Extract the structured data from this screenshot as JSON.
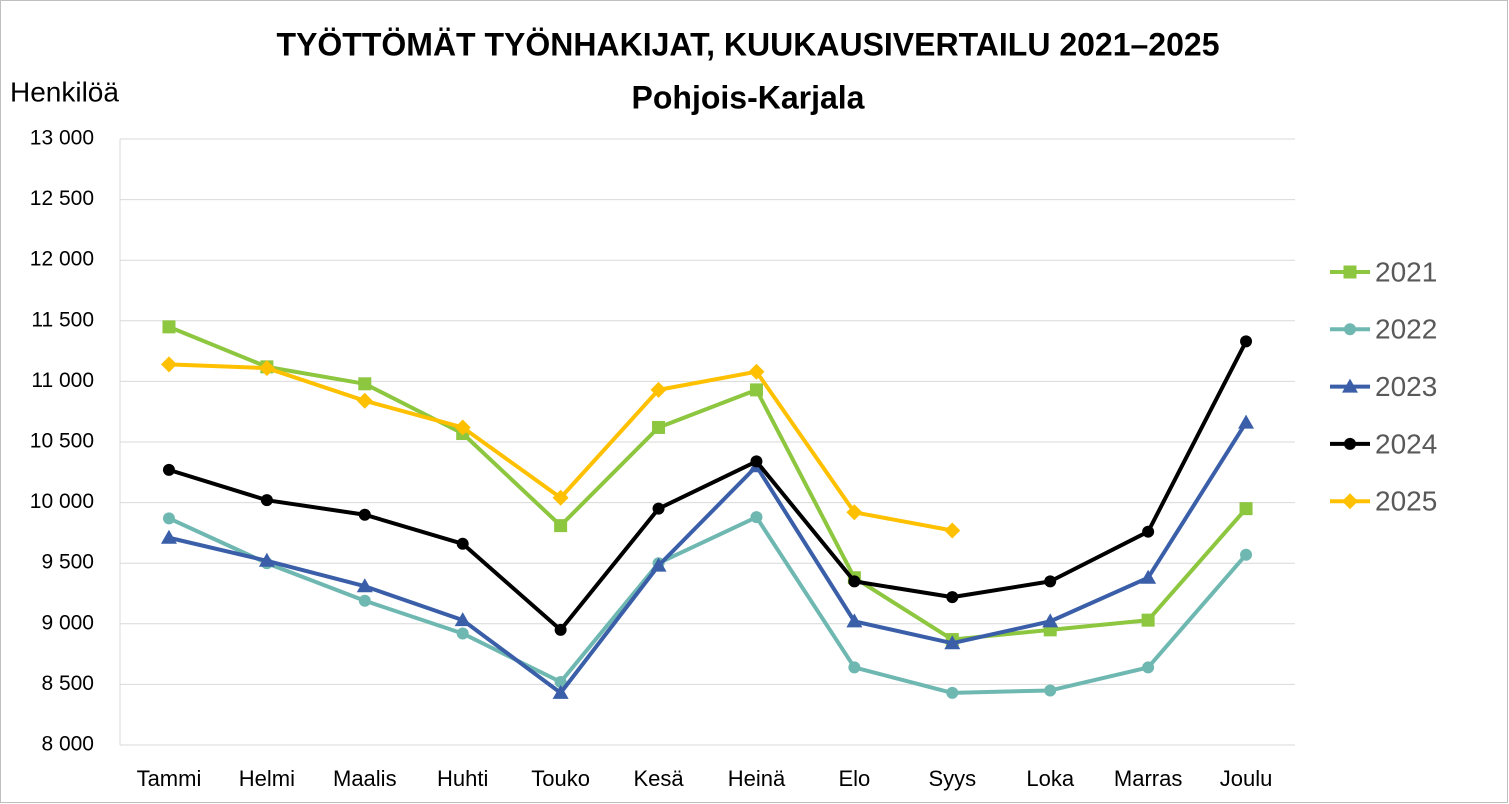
{
  "chart_data": {
    "type": "line",
    "title": "TYÖTTÖMÄT TYÖNHAKIJAT, KUUKAUSIVERTAILU 2021–2025",
    "subtitle": "Pohjois-Karjala",
    "y_label": "Henkilöä",
    "categories": [
      "Tammi",
      "Helmi",
      "Maalis",
      "Huhti",
      "Touko",
      "Kesä",
      "Heinä",
      "Elo",
      "Syys",
      "Loka",
      "Marras",
      "Joulu"
    ],
    "series": [
      {
        "name": "2021",
        "color": "#8dc63f",
        "marker": "square",
        "values": [
          11450,
          11120,
          10980,
          10570,
          9810,
          10620,
          10930,
          9380,
          8870,
          8950,
          9030,
          9950
        ]
      },
      {
        "name": "2022",
        "color": "#6fb8b2",
        "marker": "circle",
        "values": [
          9870,
          9500,
          9190,
          8920,
          8520,
          9500,
          9880,
          8640,
          8430,
          8450,
          8640,
          9570
        ]
      },
      {
        "name": "2023",
        "color": "#3a5fa8",
        "marker": "triangle",
        "values": [
          9710,
          9520,
          9310,
          9030,
          8430,
          9480,
          10300,
          9020,
          8840,
          9020,
          9380,
          10660
        ]
      },
      {
        "name": "2024",
        "color": "#000000",
        "marker": "circle",
        "values": [
          10270,
          10020,
          9900,
          9660,
          8950,
          9950,
          10340,
          9350,
          9220,
          9350,
          9760,
          11330
        ]
      },
      {
        "name": "2025",
        "color": "#ffc000",
        "marker": "diamond",
        "values": [
          11140,
          11110,
          10840,
          10620,
          10040,
          10930,
          11080,
          9920,
          9770,
          null,
          null,
          null
        ]
      }
    ],
    "ylim": [
      8000,
      13000
    ],
    "yticks": [
      {
        "value": 8000,
        "label": "8 000"
      },
      {
        "value": 8500,
        "label": "8 500"
      },
      {
        "value": 9000,
        "label": "9 000"
      },
      {
        "value": 9500,
        "label": "9 500"
      },
      {
        "value": 10000,
        "label": "10 000"
      },
      {
        "value": 10500,
        "label": "10 500"
      },
      {
        "value": 11000,
        "label": "11 000"
      },
      {
        "value": 11500,
        "label": "11 500"
      },
      {
        "value": 12000,
        "label": "12 000"
      },
      {
        "value": 12500,
        "label": "12 500"
      },
      {
        "value": 13000,
        "label": "13 000"
      }
    ],
    "grid": true,
    "legend": "right"
  }
}
